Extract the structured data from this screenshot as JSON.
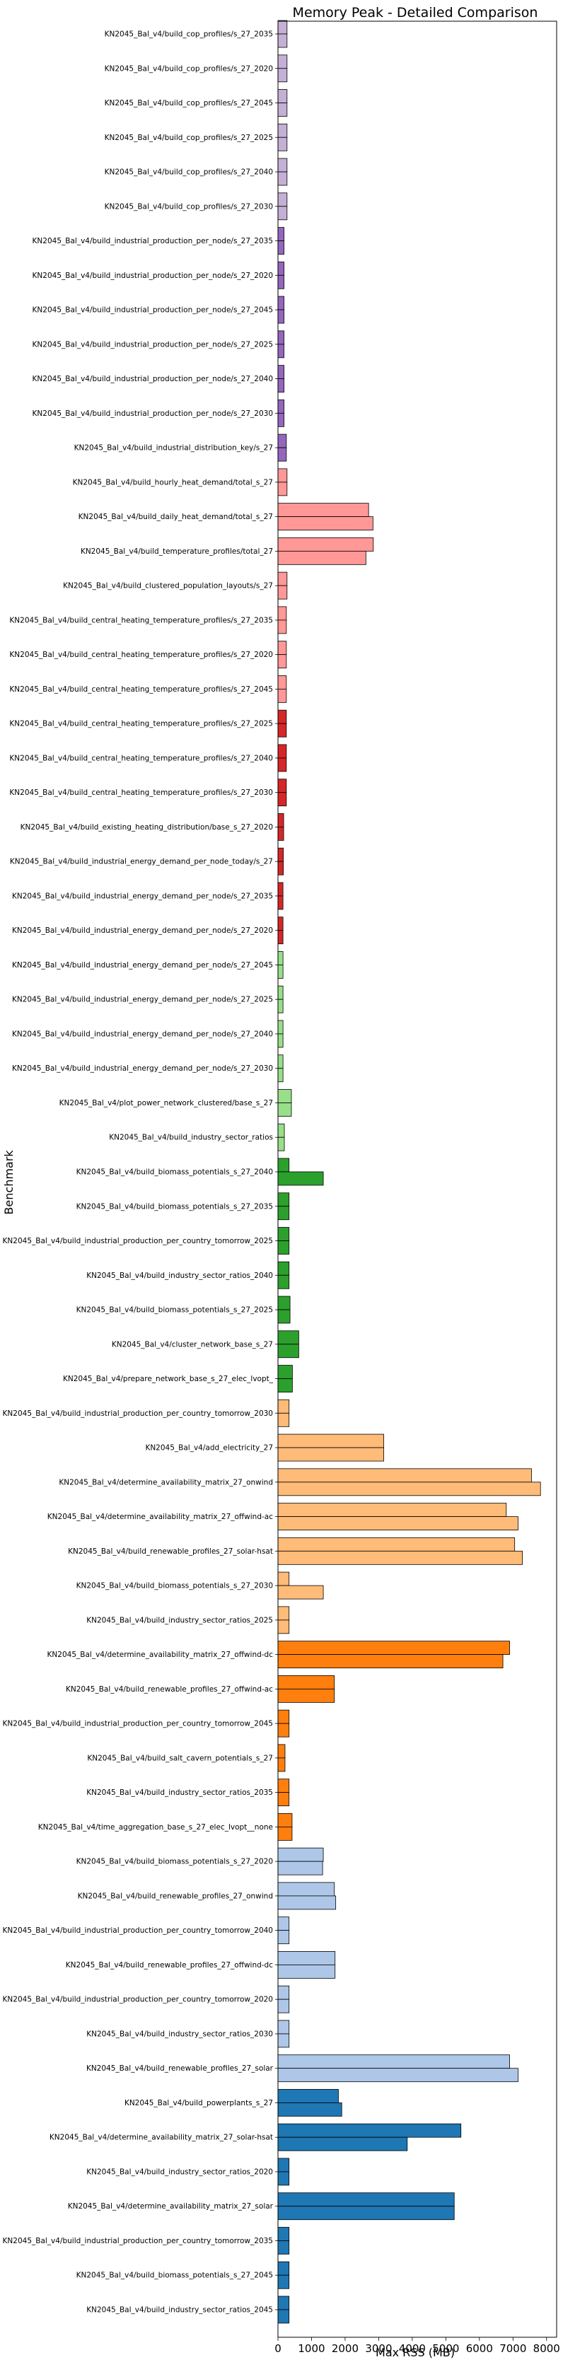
{
  "chart_data": {
    "type": "bar",
    "orientation": "horizontal",
    "title": "Memory Peak - Detailed Comparison",
    "xlabel": "Max RSS (MB)",
    "ylabel": "Benchmark",
    "xlim": [
      0,
      8300
    ],
    "xticks": [
      0,
      1000,
      2000,
      3000,
      4000,
      5000,
      6000,
      7000,
      8000
    ],
    "grid": false,
    "categories": [
      {
        "label": "KN2045_Bal_v4/build_cop_profiles/s_27_2035",
        "values": [
          270,
          270
        ],
        "color": "#c5b0d5"
      },
      {
        "label": "KN2045_Bal_v4/build_cop_profiles/s_27_2020",
        "values": [
          270,
          270
        ],
        "color": "#c5b0d5"
      },
      {
        "label": "KN2045_Bal_v4/build_cop_profiles/s_27_2045",
        "values": [
          270,
          270
        ],
        "color": "#c5b0d5"
      },
      {
        "label": "KN2045_Bal_v4/build_cop_profiles/s_27_2025",
        "values": [
          270,
          270
        ],
        "color": "#c5b0d5"
      },
      {
        "label": "KN2045_Bal_v4/build_cop_profiles/s_27_2040",
        "values": [
          270,
          270
        ],
        "color": "#c5b0d5"
      },
      {
        "label": "KN2045_Bal_v4/build_cop_profiles/s_27_2030",
        "values": [
          270,
          270
        ],
        "color": "#c5b0d5"
      },
      {
        "label": "KN2045_Bal_v4/build_industrial_production_per_node/s_27_2035",
        "values": [
          180,
          180
        ],
        "color": "#9467bd"
      },
      {
        "label": "KN2045_Bal_v4/build_industrial_production_per_node/s_27_2020",
        "values": [
          180,
          180
        ],
        "color": "#9467bd"
      },
      {
        "label": "KN2045_Bal_v4/build_industrial_production_per_node/s_27_2045",
        "values": [
          180,
          180
        ],
        "color": "#9467bd"
      },
      {
        "label": "KN2045_Bal_v4/build_industrial_production_per_node/s_27_2025",
        "values": [
          180,
          180
        ],
        "color": "#9467bd"
      },
      {
        "label": "KN2045_Bal_v4/build_industrial_production_per_node/s_27_2040",
        "values": [
          180,
          180
        ],
        "color": "#9467bd"
      },
      {
        "label": "KN2045_Bal_v4/build_industrial_production_per_node/s_27_2030",
        "values": [
          180,
          180
        ],
        "color": "#9467bd"
      },
      {
        "label": "KN2045_Bal_v4/build_industrial_distribution_key/s_27",
        "values": [
          250,
          250
        ],
        "color": "#9467bd"
      },
      {
        "label": "KN2045_Bal_v4/build_hourly_heat_demand/total_s_27",
        "values": [
          270,
          270
        ],
        "color": "#ff9896"
      },
      {
        "label": "KN2045_Bal_v4/build_daily_heat_demand/total_s_27",
        "values": [
          2700,
          2830
        ],
        "color": "#ff9896"
      },
      {
        "label": "KN2045_Bal_v4/build_temperature_profiles/total_27",
        "values": [
          2840,
          2620
        ],
        "color": "#ff9896"
      },
      {
        "label": "KN2045_Bal_v4/build_clustered_population_layouts/s_27",
        "values": [
          270,
          270
        ],
        "color": "#ff9896"
      },
      {
        "label": "KN2045_Bal_v4/build_central_heating_temperature_profiles/s_27_2035",
        "values": [
          250,
          250
        ],
        "color": "#ff9896"
      },
      {
        "label": "KN2045_Bal_v4/build_central_heating_temperature_profiles/s_27_2020",
        "values": [
          250,
          250
        ],
        "color": "#ff9896"
      },
      {
        "label": "KN2045_Bal_v4/build_central_heating_temperature_profiles/s_27_2045",
        "values": [
          250,
          250
        ],
        "color": "#ff9896"
      },
      {
        "label": "KN2045_Bal_v4/build_central_heating_temperature_profiles/s_27_2025",
        "values": [
          250,
          250
        ],
        "color": "#d62728"
      },
      {
        "label": "KN2045_Bal_v4/build_central_heating_temperature_profiles/s_27_2040",
        "values": [
          250,
          250
        ],
        "color": "#d62728"
      },
      {
        "label": "KN2045_Bal_v4/build_central_heating_temperature_profiles/s_27_2030",
        "values": [
          250,
          250
        ],
        "color": "#d62728"
      },
      {
        "label": "KN2045_Bal_v4/build_existing_heating_distribution/base_s_27_2020",
        "values": [
          170,
          170
        ],
        "color": "#d62728"
      },
      {
        "label": "KN2045_Bal_v4/build_industrial_energy_demand_per_node_today/s_27",
        "values": [
          160,
          160
        ],
        "color": "#d62728"
      },
      {
        "label": "KN2045_Bal_v4/build_industrial_energy_demand_per_node/s_27_2035",
        "values": [
          150,
          150
        ],
        "color": "#d62728"
      },
      {
        "label": "KN2045_Bal_v4/build_industrial_energy_demand_per_node/s_27_2020",
        "values": [
          150,
          150
        ],
        "color": "#d62728"
      },
      {
        "label": "KN2045_Bal_v4/build_industrial_energy_demand_per_node/s_27_2045",
        "values": [
          150,
          150
        ],
        "color": "#98df8a"
      },
      {
        "label": "KN2045_Bal_v4/build_industrial_energy_demand_per_node/s_27_2025",
        "values": [
          150,
          150
        ],
        "color": "#98df8a"
      },
      {
        "label": "KN2045_Bal_v4/build_industrial_energy_demand_per_node/s_27_2040",
        "values": [
          150,
          150
        ],
        "color": "#98df8a"
      },
      {
        "label": "KN2045_Bal_v4/build_industrial_energy_demand_per_node/s_27_2030",
        "values": [
          150,
          150
        ],
        "color": "#98df8a"
      },
      {
        "label": "KN2045_Bal_v4/plot_power_network_clustered/base_s_27",
        "values": [
          400,
          400
        ],
        "color": "#98df8a"
      },
      {
        "label": "KN2045_Bal_v4/build_industry_sector_ratios",
        "values": [
          190,
          190
        ],
        "color": "#98df8a"
      },
      {
        "label": "KN2045_Bal_v4/build_biomass_potentials_s_27_2040",
        "values": [
          330,
          1350
        ],
        "color": "#2ca02c"
      },
      {
        "label": "KN2045_Bal_v4/build_biomass_potentials_s_27_2035",
        "values": [
          330,
          330
        ],
        "color": "#2ca02c"
      },
      {
        "label": "KN2045_Bal_v4/build_industrial_production_per_country_tomorrow_2025",
        "values": [
          330,
          330
        ],
        "color": "#2ca02c"
      },
      {
        "label": "KN2045_Bal_v4/build_industry_sector_ratios_2040",
        "values": [
          330,
          330
        ],
        "color": "#2ca02c"
      },
      {
        "label": "KN2045_Bal_v4/build_biomass_potentials_s_27_2025",
        "values": [
          360,
          360
        ],
        "color": "#2ca02c"
      },
      {
        "label": "KN2045_Bal_v4/cluster_network_base_s_27",
        "values": [
          620,
          620
        ],
        "color": "#2ca02c"
      },
      {
        "label": "KN2045_Bal_v4/prepare_network_base_s_27_elec_lvopt_",
        "values": [
          430,
          430
        ],
        "color": "#2ca02c"
      },
      {
        "label": "KN2045_Bal_v4/build_industrial_production_per_country_tomorrow_2030",
        "values": [
          330,
          330
        ],
        "color": "#ffbb78"
      },
      {
        "label": "KN2045_Bal_v4/add_electricity_27",
        "values": [
          3150,
          3150
        ],
        "color": "#ffbb78"
      },
      {
        "label": "KN2045_Bal_v4/determine_availability_matrix_27_onwind",
        "values": [
          7550,
          7820
        ],
        "color": "#ffbb78"
      },
      {
        "label": "KN2045_Bal_v4/determine_availability_matrix_27_offwind-ac",
        "values": [
          6800,
          7150
        ],
        "color": "#ffbb78"
      },
      {
        "label": "KN2045_Bal_v4/build_renewable_profiles_27_solar-hsat",
        "values": [
          7050,
          7280
        ],
        "color": "#ffbb78"
      },
      {
        "label": "KN2045_Bal_v4/build_biomass_potentials_s_27_2030",
        "values": [
          330,
          1350
        ],
        "color": "#ffbb78"
      },
      {
        "label": "KN2045_Bal_v4/build_industry_sector_ratios_2025",
        "values": [
          330,
          330
        ],
        "color": "#ffbb78"
      },
      {
        "label": "KN2045_Bal_v4/determine_availability_matrix_27_offwind-dc",
        "values": [
          6900,
          6700
        ],
        "color": "#ff7f0e"
      },
      {
        "label": "KN2045_Bal_v4/build_renewable_profiles_27_offwind-ac",
        "values": [
          1680,
          1680
        ],
        "color": "#ff7f0e"
      },
      {
        "label": "KN2045_Bal_v4/build_industrial_production_per_country_tomorrow_2045",
        "values": [
          330,
          330
        ],
        "color": "#ff7f0e"
      },
      {
        "label": "KN2045_Bal_v4/build_salt_cavern_potentials_s_27",
        "values": [
          210,
          210
        ],
        "color": "#ff7f0e"
      },
      {
        "label": "KN2045_Bal_v4/build_industry_sector_ratios_2035",
        "values": [
          330,
          330
        ],
        "color": "#ff7f0e"
      },
      {
        "label": "KN2045_Bal_v4/time_aggregation_base_s_27_elec_lvopt__none",
        "values": [
          420,
          420
        ],
        "color": "#ff7f0e"
      },
      {
        "label": "KN2045_Bal_v4/build_biomass_potentials_s_27_2020",
        "values": [
          1350,
          1330
        ],
        "color": "#aec7e8"
      },
      {
        "label": "KN2045_Bal_v4/build_renewable_profiles_27_onwind",
        "values": [
          1680,
          1720
        ],
        "color": "#aec7e8"
      },
      {
        "label": "KN2045_Bal_v4/build_industrial_production_per_country_tomorrow_2040",
        "values": [
          330,
          330
        ],
        "color": "#aec7e8"
      },
      {
        "label": "KN2045_Bal_v4/build_renewable_profiles_27_offwind-dc",
        "values": [
          1700,
          1700
        ],
        "color": "#aec7e8"
      },
      {
        "label": "KN2045_Bal_v4/build_industrial_production_per_country_tomorrow_2020",
        "values": [
          330,
          330
        ],
        "color": "#aec7e8"
      },
      {
        "label": "KN2045_Bal_v4/build_industry_sector_ratios_2030",
        "values": [
          330,
          330
        ],
        "color": "#aec7e8"
      },
      {
        "label": "KN2045_Bal_v4/build_renewable_profiles_27_solar",
        "values": [
          6900,
          7150
        ],
        "color": "#aec7e8"
      },
      {
        "label": "KN2045_Bal_v4/build_powerplants_s_27",
        "values": [
          1800,
          1900
        ],
        "color": "#1f77b4"
      },
      {
        "label": "KN2045_Bal_v4/determine_availability_matrix_27_solar-hsat",
        "values": [
          5450,
          3850
        ],
        "color": "#1f77b4"
      },
      {
        "label": "KN2045_Bal_v4/build_industry_sector_ratios_2020",
        "values": [
          330,
          330
        ],
        "color": "#1f77b4"
      },
      {
        "label": "KN2045_Bal_v4/determine_availability_matrix_27_solar",
        "values": [
          5250,
          5250
        ],
        "color": "#1f77b4"
      },
      {
        "label": "KN2045_Bal_v4/build_industrial_production_per_country_tomorrow_2035",
        "values": [
          330,
          330
        ],
        "color": "#1f77b4"
      },
      {
        "label": "KN2045_Bal_v4/build_biomass_potentials_s_27_2045",
        "values": [
          330,
          330
        ],
        "color": "#1f77b4"
      },
      {
        "label": "KN2045_Bal_v4/build_industry_sector_ratios_2045",
        "values": [
          330,
          330
        ],
        "color": "#1f77b4"
      }
    ]
  }
}
